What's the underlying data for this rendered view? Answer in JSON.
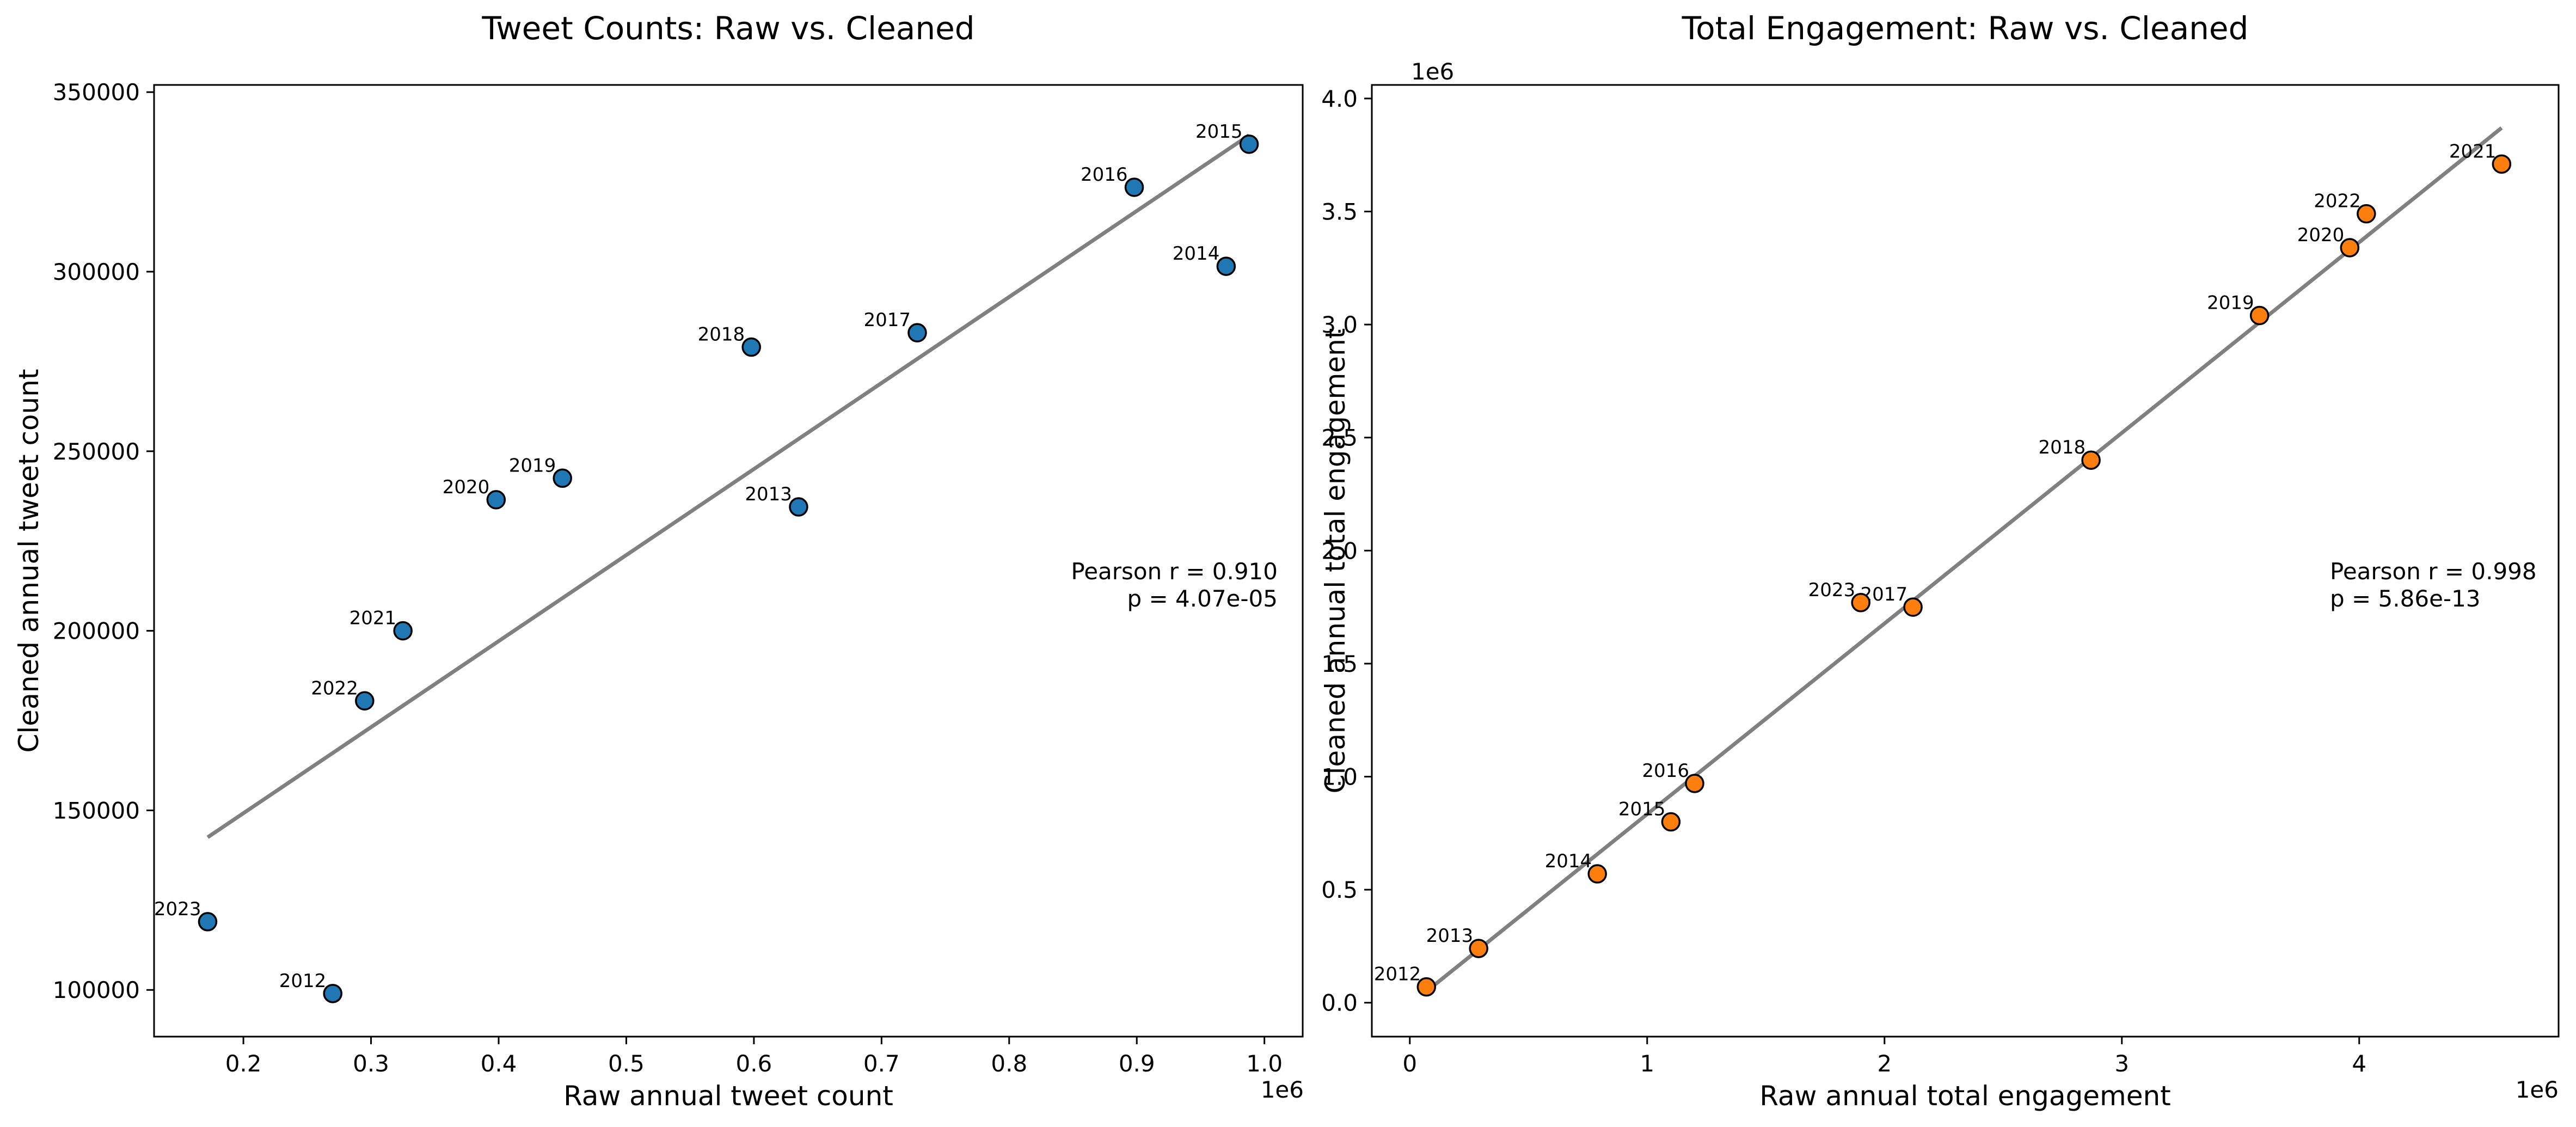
{
  "chart_data": [
    {
      "type": "scatter",
      "title": "Tweet Counts: Raw vs. Cleaned",
      "xlabel": "Raw annual tweet count",
      "ylabel": "Cleaned annual tweet count",
      "x_offset_label": "1e6",
      "xlim": [
        0.13,
        1.03
      ],
      "ylim": [
        87000,
        352000
      ],
      "xticks": [
        0.2,
        0.3,
        0.4,
        0.5,
        0.6,
        0.7,
        0.8,
        0.9,
        1.0
      ],
      "xtick_labels": [
        "0.2",
        "0.3",
        "0.4",
        "0.5",
        "0.6",
        "0.7",
        "0.8",
        "0.9",
        "1.0"
      ],
      "yticks": [
        100000,
        150000,
        200000,
        250000,
        300000,
        350000
      ],
      "ytick_labels": [
        "100000",
        "150000",
        "200000",
        "250000",
        "300000",
        "350000"
      ],
      "point_color": "#1f77b4",
      "line_color": "#808080",
      "points": [
        {
          "label": "2012",
          "x": 0.27,
          "y": 99000
        },
        {
          "label": "2013",
          "x": 0.635,
          "y": 234500
        },
        {
          "label": "2014",
          "x": 0.97,
          "y": 301500
        },
        {
          "label": "2015",
          "x": 0.988,
          "y": 335500
        },
        {
          "label": "2016",
          "x": 0.898,
          "y": 323500
        },
        {
          "label": "2017",
          "x": 0.728,
          "y": 283000
        },
        {
          "label": "2018",
          "x": 0.598,
          "y": 279000
        },
        {
          "label": "2019",
          "x": 0.45,
          "y": 242500
        },
        {
          "label": "2020",
          "x": 0.398,
          "y": 236500
        },
        {
          "label": "2021",
          "x": 0.325,
          "y": 200000
        },
        {
          "label": "2022",
          "x": 0.295,
          "y": 180500
        },
        {
          "label": "2023",
          "x": 0.172,
          "y": 119000
        }
      ],
      "fit_line": {
        "x": [
          0.172,
          0.988
        ],
        "y": [
          142500,
          338000
        ]
      },
      "annotation": [
        "Pearson r = 0.910",
        "p = 4.07e-05"
      ]
    },
    {
      "type": "scatter",
      "title": "Total Engagement: Raw vs. Cleaned",
      "xlabel": "Raw annual total engagement",
      "ylabel": "Cleaned annual total engagement",
      "x_offset_label": "1e6",
      "y_offset_label": "1e6",
      "xlim": [
        -0.16,
        4.84
      ],
      "ylim": [
        -0.15,
        4.06
      ],
      "xticks": [
        0,
        1,
        2,
        3,
        4
      ],
      "xtick_labels": [
        "0",
        "1",
        "2",
        "3",
        "4"
      ],
      "yticks": [
        0.0,
        0.5,
        1.0,
        1.5,
        2.0,
        2.5,
        3.0,
        3.5,
        4.0
      ],
      "ytick_labels": [
        "0.0",
        "0.5",
        "1.0",
        "1.5",
        "2.0",
        "2.5",
        "3.0",
        "3.5",
        "4.0"
      ],
      "point_color": "#ff7f0e",
      "line_color": "#808080",
      "points": [
        {
          "label": "2012",
          "x": 0.07,
          "y": 0.07
        },
        {
          "label": "2013",
          "x": 0.29,
          "y": 0.24
        },
        {
          "label": "2014",
          "x": 0.79,
          "y": 0.57
        },
        {
          "label": "2015",
          "x": 1.1,
          "y": 0.8
        },
        {
          "label": "2016",
          "x": 1.2,
          "y": 0.97
        },
        {
          "label": "2017",
          "x": 2.12,
          "y": 1.75
        },
        {
          "label": "2018",
          "x": 2.87,
          "y": 2.4
        },
        {
          "label": "2019",
          "x": 3.58,
          "y": 3.04
        },
        {
          "label": "2020",
          "x": 3.96,
          "y": 3.34
        },
        {
          "label": "2021",
          "x": 4.6,
          "y": 3.71
        },
        {
          "label": "2022",
          "x": 4.03,
          "y": 3.49
        },
        {
          "label": "2023",
          "x": 1.9,
          "y": 1.77
        }
      ],
      "fit_line": {
        "x": [
          0.07,
          4.6
        ],
        "y": [
          0.05,
          3.87
        ]
      },
      "annotation": [
        "Pearson r = 0.998",
        "p = 5.86e-13"
      ]
    }
  ]
}
